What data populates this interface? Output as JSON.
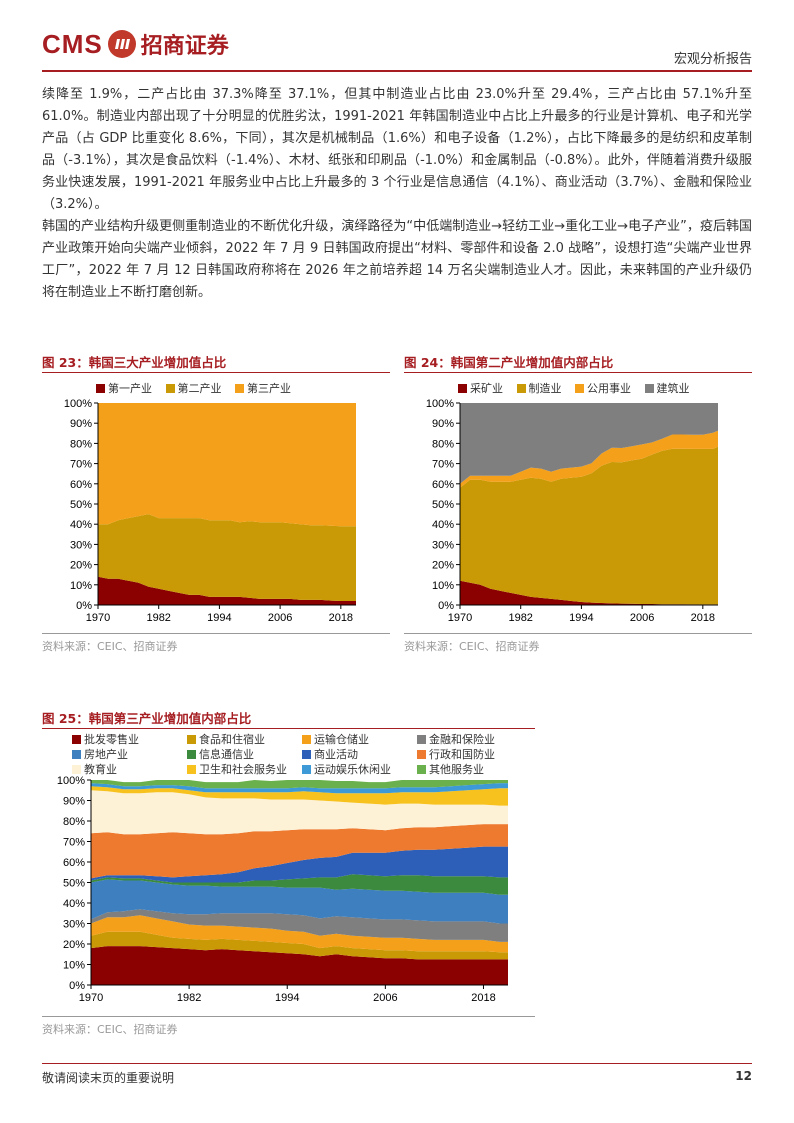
{
  "header": {
    "logo_text": "CMS",
    "logo_cn": "招商证券",
    "doc_type": "宏观分析报告"
  },
  "paragraphs": [
    "续降至 1.9%，二产占比由 37.3%降至 37.1%，但其中制造业占比由 23.0%升至 29.4%，三产占比由 57.1%升至 61.0%。制造业内部出现了十分明显的优胜劣汰，1991-2021 年韩国制造业中占比上升最多的行业是计算机、电子和光学产品（占 GDP 比重变化 8.6%，下同），其次是机械制品（1.6%）和电子设备（1.2%），占比下降最多的是纺织和皮革制品（-3.1%），其次是食品饮料（-1.4%）、木材、纸张和印刷品（-1.0%）和金属制品（-0.8%）。此外，伴随着消费升级服务业快速发展，1991-2021 年服务业中占比上升最多的 3 个行业是信息通信（4.1%）、商业活动（3.7%）、金融和保险业（3.2%）。",
    "韩国的产业结构升级更侧重制造业的不断优化升级，演绎路径为“中低端制造业→轻纺工业→重化工业→电子产业”，疫后韩国产业政策开始向尖端产业倾斜，2022 年 7 月 9 日韩国政府提出“材料、零部件和设备 2.0 战略”，设想打造“尖端产业世界工厂”，2022 年 7 月 12 日韩国政府称将在 2026 年之前培养超 14 万名尖端制造业人才。因此，未来韩国的产业升级仍将在制造业上不断打磨创新。"
  ],
  "figures": {
    "fig23": {
      "title": "图 23：韩国三大产业增加值占比",
      "source": "资料来源：CEIC、招商证券"
    },
    "fig24": {
      "title": "图 24：韩国第二产业增加值内部占比",
      "source": "资料来源：CEIC、招商证券"
    },
    "fig25": {
      "title": "图 25：韩国第三产业增加值内部占比",
      "source": "资料来源：CEIC、招商证券"
    }
  },
  "chart_data": [
    {
      "type": "area",
      "stacked": true,
      "x": [
        1970,
        1972,
        1974,
        1976,
        1978,
        1980,
        1982,
        1984,
        1986,
        1988,
        1990,
        1992,
        1994,
        1996,
        1998,
        2000,
        2002,
        2004,
        2006,
        2008,
        2010,
        2012,
        2014,
        2016,
        2018,
        2020,
        2021
      ],
      "x_ticks": [
        "1970",
        "1982",
        "1994",
        "2006",
        "2018"
      ],
      "y_ticks": [
        "0%",
        "10%",
        "20%",
        "30%",
        "40%",
        "50%",
        "60%",
        "70%",
        "80%",
        "90%",
        "100%"
      ],
      "ylim": [
        0,
        100
      ],
      "series": [
        {
          "name": "第一产业",
          "color": "#8b0000",
          "values": [
            14,
            13,
            13,
            12,
            11,
            9,
            8,
            7,
            6,
            5,
            5,
            4,
            4,
            4,
            4,
            3.5,
            3,
            3,
            3,
            3,
            2.5,
            2.5,
            2.5,
            2.2,
            2,
            2,
            2
          ]
        },
        {
          "name": "第二产业",
          "color": "#c99a06",
          "values": [
            26,
            27,
            29,
            31,
            33,
            36,
            35,
            36,
            37,
            38,
            38,
            38,
            38,
            38,
            37,
            38,
            38,
            38,
            38,
            37.5,
            37.5,
            37,
            37,
            37,
            37,
            37,
            37
          ]
        },
        {
          "name": "第三产业",
          "color": "#f5a01a",
          "values": [
            60,
            60,
            58,
            57,
            56,
            55,
            57,
            57,
            57,
            57,
            57,
            58,
            58,
            58,
            59,
            58.5,
            59,
            59,
            59,
            59.5,
            60,
            60.5,
            60.5,
            60.8,
            61,
            61,
            61
          ]
        }
      ]
    },
    {
      "type": "area",
      "stacked": true,
      "x": [
        1970,
        1972,
        1974,
        1976,
        1978,
        1980,
        1982,
        1984,
        1986,
        1988,
        1990,
        1992,
        1994,
        1996,
        1998,
        2000,
        2002,
        2004,
        2006,
        2008,
        2010,
        2012,
        2014,
        2016,
        2018,
        2020,
        2021
      ],
      "x_ticks": [
        "1970",
        "1982",
        "1994",
        "2006",
        "2018"
      ],
      "y_ticks": [
        "0%",
        "10%",
        "20%",
        "30%",
        "40%",
        "50%",
        "60%",
        "70%",
        "80%",
        "90%",
        "100%"
      ],
      "ylim": [
        0,
        100
      ],
      "series": [
        {
          "name": "采矿业",
          "color": "#8b0000",
          "values": [
            12,
            11,
            10,
            8,
            7,
            6,
            5,
            4,
            3.5,
            3,
            2.5,
            2,
            1.5,
            1.2,
            1,
            0.8,
            0.7,
            0.6,
            0.5,
            0.5,
            0.4,
            0.4,
            0.4,
            0.3,
            0.3,
            0.3,
            0.3
          ]
        },
        {
          "name": "制造业",
          "color": "#c99a06",
          "values": [
            46,
            51,
            52,
            53,
            54,
            55,
            57,
            59,
            59,
            58,
            60,
            61,
            62,
            64,
            68,
            70,
            70,
            71,
            72,
            74,
            76,
            77,
            77,
            77,
            77,
            77,
            78
          ]
        },
        {
          "name": "公用事业",
          "color": "#f5a01a",
          "values": [
            2,
            2,
            2,
            3,
            3,
            3,
            4,
            5,
            5,
            5,
            5,
            5,
            5,
            5,
            6,
            7,
            7,
            7,
            7,
            6,
            6,
            7,
            7,
            7,
            7,
            8,
            8
          ]
        },
        {
          "name": "建筑业",
          "color": "#7f7f7f",
          "values": [
            40,
            36,
            36,
            36,
            36,
            36,
            34,
            32,
            32.5,
            34,
            32.5,
            32,
            31.5,
            29.8,
            25,
            22.2,
            22.3,
            21.4,
            20.5,
            19.5,
            17.6,
            15.6,
            15.6,
            15.7,
            15.7,
            14.7,
            13.7
          ]
        }
      ]
    },
    {
      "type": "area",
      "stacked": true,
      "x": [
        1970,
        1972,
        1974,
        1976,
        1978,
        1980,
        1982,
        1984,
        1986,
        1988,
        1990,
        1992,
        1994,
        1996,
        1998,
        2000,
        2002,
        2004,
        2006,
        2008,
        2010,
        2012,
        2014,
        2016,
        2018,
        2020,
        2021
      ],
      "x_ticks": [
        "1970",
        "1982",
        "1994",
        "2006",
        "2018"
      ],
      "y_ticks": [
        "0%",
        "10%",
        "20%",
        "30%",
        "40%",
        "50%",
        "60%",
        "70%",
        "80%",
        "90%",
        "100%"
      ],
      "ylim": [
        0,
        100
      ],
      "series": [
        {
          "name": "批发零售业",
          "color": "#8b0000",
          "values": [
            18,
            19,
            19,
            19,
            18.5,
            18,
            17.5,
            17,
            17.5,
            17,
            16.5,
            16,
            15.5,
            15,
            14,
            15,
            14,
            13.5,
            13,
            13,
            12.5,
            12.5,
            12.5,
            12.5,
            12.5,
            12.5,
            12.5
          ]
        },
        {
          "name": "食品和住宿业",
          "color": "#c99a06",
          "values": [
            6,
            7,
            7,
            7,
            6,
            5,
            5,
            5,
            5,
            5,
            5,
            5,
            5,
            5,
            4,
            4,
            4,
            4,
            4,
            4,
            4,
            4,
            4,
            4,
            4,
            3.5,
            3.5
          ]
        },
        {
          "name": "运输仓储业",
          "color": "#f5a01a",
          "values": [
            6,
            7,
            7,
            8,
            8,
            8,
            7,
            7,
            6.5,
            6.5,
            6.5,
            6.5,
            6,
            6,
            6,
            6,
            6,
            6,
            6,
            6,
            6,
            5.5,
            5.5,
            5.5,
            5.5,
            5,
            5
          ]
        },
        {
          "name": "金融和保险业",
          "color": "#7f7f7f",
          "values": [
            2,
            2.5,
            3,
            3,
            3.5,
            4,
            5,
            5.5,
            6,
            6.5,
            7,
            7.5,
            8,
            8,
            8.5,
            8.5,
            9,
            9,
            9,
            9,
            9,
            9,
            9,
            9,
            9,
            9,
            9
          ]
        },
        {
          "name": "房地产业",
          "color": "#3d7fbf",
          "values": [
            18,
            16,
            15,
            14,
            14,
            14,
            14,
            14,
            13,
            13,
            13,
            13,
            13,
            13.5,
            15,
            13,
            14,
            14,
            14,
            14,
            14,
            14,
            14,
            14,
            14,
            14,
            14
          ]
        },
        {
          "name": "信息通信业",
          "color": "#3b8a3e",
          "values": [
            1,
            1,
            1,
            1,
            1,
            1,
            1.5,
            1.5,
            2,
            2,
            3,
            3,
            4,
            4.5,
            5,
            6,
            7,
            7,
            7,
            7.5,
            8,
            8,
            8,
            8,
            8,
            8.5,
            8.5
          ]
        },
        {
          "name": "商业活动",
          "color": "#2e5fb8",
          "values": [
            1,
            1,
            1.5,
            1.5,
            2,
            2.5,
            3,
            3.5,
            4,
            5,
            6,
            7,
            8,
            9,
            9.5,
            10,
            10.5,
            11,
            11.5,
            12,
            12.5,
            13,
            13.5,
            14,
            14.5,
            15,
            15
          ]
        },
        {
          "name": "行政和国防业",
          "color": "#ee7a30",
          "values": [
            22,
            21,
            20,
            20,
            21,
            22,
            21,
            20,
            19.5,
            19,
            18,
            17,
            16,
            15,
            14,
            13.5,
            12,
            11.5,
            11,
            11,
            11,
            11,
            11,
            11,
            11,
            11,
            11
          ]
        },
        {
          "name": "教育业",
          "color": "#fdf1d6",
          "values": [
            21,
            20,
            20,
            20,
            20,
            19.5,
            19,
            18,
            17.5,
            17,
            16,
            15.5,
            15,
            14.5,
            14,
            13.5,
            12.5,
            12.5,
            12.5,
            12,
            11.5,
            11,
            10.5,
            10,
            9.5,
            9,
            9
          ]
        },
        {
          "name": "卫生和社会服务业",
          "color": "#f7c21d",
          "values": [
            2,
            2,
            2,
            2,
            2,
            2,
            2,
            2.5,
            3,
            3,
            3,
            3.5,
            3.5,
            4,
            4,
            4,
            4.5,
            5,
            5.5,
            5.5,
            5.5,
            6,
            6.5,
            7,
            7.5,
            8.5,
            8.5
          ]
        },
        {
          "name": "运动娱乐休闲业",
          "color": "#3d9ad6",
          "values": [
            1.5,
            1.5,
            1.5,
            1.5,
            1.5,
            1.5,
            2,
            2,
            2,
            2,
            2,
            2,
            2,
            2,
            2,
            2.5,
            2.5,
            2.5,
            2.5,
            2.5,
            2.5,
            2.5,
            2.5,
            2.5,
            2.5,
            2.5,
            2.5
          ]
        },
        {
          "name": "其他服务业",
          "color": "#6ab04c",
          "values": [
            1.5,
            2,
            2,
            2,
            2.5,
            2.5,
            3,
            3,
            3,
            3,
            4,
            3.5,
            4,
            3.5,
            4,
            3.5,
            3.5,
            3,
            3,
            3.5,
            3.5,
            3.5,
            3,
            3.5,
            2,
            2.5,
            2.5
          ]
        }
      ]
    }
  ],
  "footer": {
    "text": "敬请阅读末页的重要说明",
    "page": "12"
  }
}
